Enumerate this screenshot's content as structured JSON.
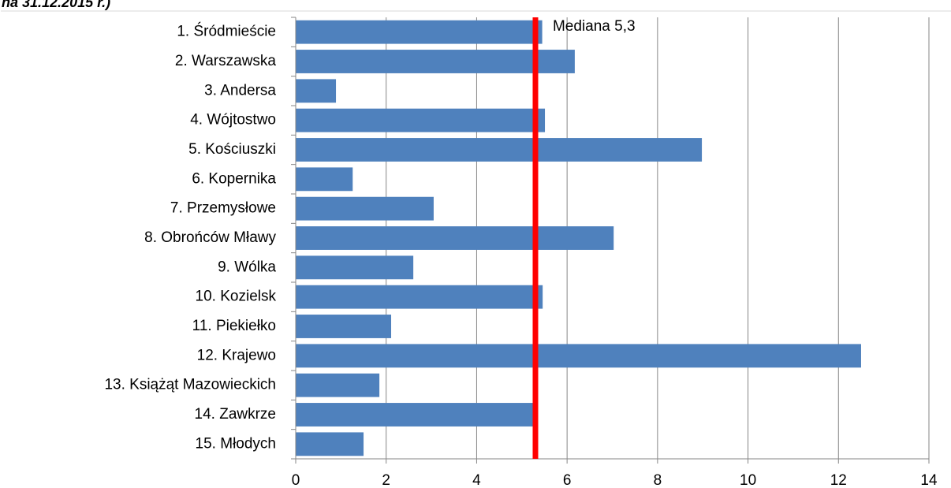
{
  "chart_data": {
    "type": "bar",
    "orientation": "horizontal",
    "title": "na 31.12.2015 r.)",
    "categories": [
      "1. Śródmieście",
      "2. Warszawska",
      "3. Andersa",
      "4. Wójtostwo",
      "5. Kościuszki",
      "6. Kopernika",
      "7. Przemysłowe",
      "8. Obrońców Mławy",
      "9. Wólka",
      "10. Kozielsk",
      "11. Piekiełko",
      "12. Krajewo",
      "13. Książąt Mazowieckich",
      "14. Zawkrze",
      "15. Młodych"
    ],
    "values": [
      5.45,
      6.17,
      0.89,
      5.51,
      8.98,
      1.26,
      3.05,
      7.03,
      2.6,
      5.46,
      2.11,
      12.5,
      1.85,
      5.27,
      1.5
    ],
    "color": "#4f81bd",
    "xlim": [
      0,
      14
    ],
    "xticks": [
      0,
      2,
      4,
      6,
      8,
      10,
      12,
      14
    ],
    "grid": true,
    "median": {
      "value": 5.3,
      "label": "Mediana 5,3",
      "color": "#ff0000"
    }
  }
}
